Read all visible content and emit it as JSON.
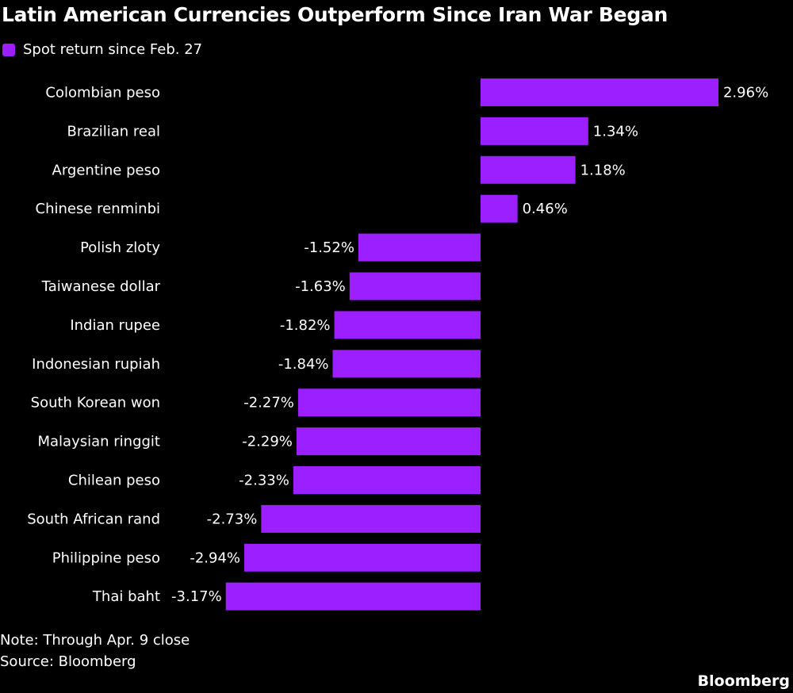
{
  "chart_data": {
    "type": "bar",
    "orientation": "horizontal",
    "title": "Latin American Currencies Outperform Since Iran War Began",
    "legend": [
      "Spot return since Feb. 27"
    ],
    "legend_placement": "top-left",
    "categories": [
      "Colombian peso",
      "Brazilian real",
      "Argentine peso",
      "Chinese renminbi",
      "Polish zloty",
      "Taiwanese dollar",
      "Indian rupee",
      "Indonesian rupiah",
      "South Korean won",
      "Malaysian ringgit",
      "Chilean peso",
      "South African rand",
      "Philippine peso",
      "Thai baht"
    ],
    "series": [
      {
        "name": "Spot return since Feb. 27",
        "values": [
          2.96,
          1.34,
          1.18,
          0.46,
          -1.52,
          -1.63,
          -1.82,
          -1.84,
          -2.27,
          -2.29,
          -2.33,
          -2.73,
          -2.94,
          -3.17
        ]
      }
    ],
    "data_labels": [
      "2.96%",
      "1.34%",
      "1.18%",
      "0.46%",
      "-1.52%",
      "-1.63%",
      "-1.82%",
      "-1.84%",
      "-2.27%",
      "-2.29%",
      "-2.33%",
      "-2.73%",
      "-2.94%",
      "-3.17%"
    ],
    "unit": "%",
    "grid": false,
    "bar_color": "#9B1FFF"
  },
  "note": "Note: Through Apr. 9 close",
  "source": "Source: Bloomberg",
  "logo": "Bloomberg"
}
